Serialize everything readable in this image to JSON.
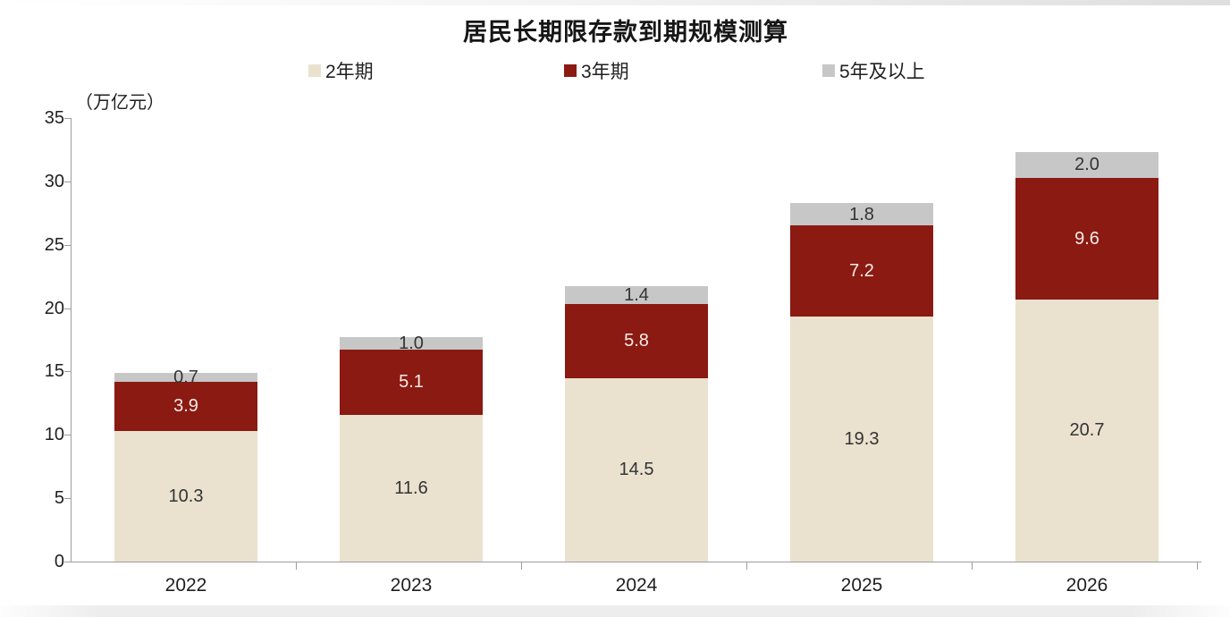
{
  "page": {
    "background": "#ffffff"
  },
  "chart_data": {
    "type": "bar",
    "stacked": true,
    "title": "居民长期限存款到期规模测算",
    "unit_label": "（万亿元）",
    "categories": [
      "2022",
      "2023",
      "2024",
      "2025",
      "2026"
    ],
    "series": [
      {
        "name": "2年期",
        "color": "#eae2cf",
        "label_color": "#333333",
        "values": [
          10.3,
          11.6,
          14.5,
          19.3,
          20.7
        ],
        "labels": [
          "10.3",
          "11.6",
          "14.5",
          "19.3",
          "20.7"
        ]
      },
      {
        "name": "3年期",
        "color": "#8a1a12",
        "label_color": "#f7ece7",
        "values": [
          3.9,
          5.1,
          5.8,
          7.2,
          9.6
        ],
        "labels": [
          "3.9",
          "5.1",
          "5.8",
          "7.2",
          "9.6"
        ]
      },
      {
        "name": "5年及以上",
        "color": "#c7c7c7",
        "label_color": "#333333",
        "values": [
          0.7,
          1.0,
          1.4,
          1.8,
          2.0
        ],
        "labels": [
          "0.7",
          "1.0",
          "1.4",
          "1.8",
          "2.0"
        ]
      }
    ],
    "ylim": [
      0,
      35
    ],
    "yticks": [
      0,
      5,
      10,
      15,
      20,
      25,
      30,
      35
    ],
    "grid": false,
    "legend_position": "top",
    "axis_color": "#9d9d9d",
    "text_color": "#1f1f1f"
  }
}
